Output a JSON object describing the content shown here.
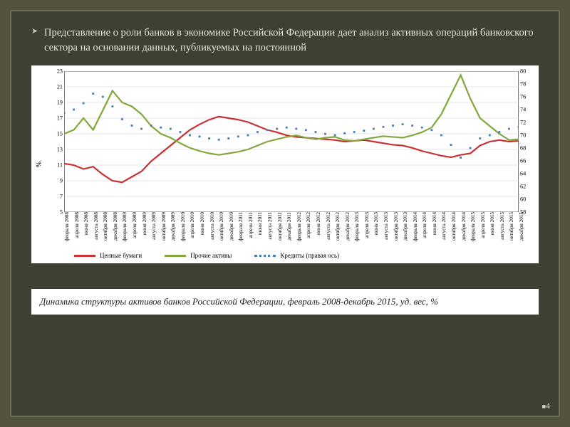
{
  "bullet_text": "Представление о роли банков в экономике Российской Федерации дает анализ активных операций банковского сектора на основании данных, публикуемых на постоянной",
  "caption_text": "Динамика структуры активов банков Российской Федерации, февраль 2008-декабрь 2015, уд. вес, %",
  "page_number": "4",
  "chart": {
    "type": "line",
    "background_color": "#ffffff",
    "slide_background": "#3f3f34",
    "outer_background": "#54533e",
    "ylabel_left": "%",
    "y_left": {
      "min": 5,
      "max": 23,
      "ticks": [
        5,
        7,
        9,
        11,
        13,
        15,
        17,
        19,
        21,
        23
      ]
    },
    "y_right": {
      "min": 58,
      "max": 80,
      "ticks": [
        58,
        60,
        62,
        64,
        66,
        68,
        70,
        72,
        74,
        76,
        78,
        80
      ]
    },
    "x_labels": [
      "февраля 2008",
      "апреля 2008",
      "июня 2008",
      "августа 2008",
      "октября 2008",
      "декабря 2008",
      "февраля 2009",
      "апреля 2009",
      "июня 2009",
      "августа 2009",
      "октября 2009",
      "декабря 2009",
      "февраля 2010",
      "апреля 2010",
      "июня 2010",
      "августа 2010",
      "октября 2010",
      "декабря 2010",
      "февраля 2011",
      "апреля 2011",
      "июня 2011",
      "августа 2011",
      "октября 2011",
      "декабря 2011",
      "февраля 2012",
      "апреля 2012",
      "июня 2012",
      "августа 2012",
      "октября 2012",
      "декабря 2012",
      "февраля 2013",
      "апреля 2013",
      "июня 2013",
      "августа 2013",
      "октября 2013",
      "декабря 2013",
      "февраля 2014",
      "апреля 2014",
      "июня 2014",
      "августа 2014",
      "октября 2014",
      "декабря 2014",
      "февраля 2015",
      "апреля 2015",
      "июня 2015",
      "августа 2015",
      "октября 2015",
      "декабря 2015"
    ],
    "series": [
      {
        "name": "Ценные бумаги",
        "legend_label": "Ценные бумаги",
        "color": "#c83232",
        "axis": "left",
        "style": "solid",
        "line_width": 2.2,
        "values": [
          11.2,
          11.0,
          10.5,
          10.8,
          9.8,
          9.0,
          8.8,
          9.5,
          10.2,
          11.5,
          12.5,
          13.5,
          14.5,
          15.5,
          16.2,
          16.8,
          17.2,
          17.0,
          16.8,
          16.5,
          16.0,
          15.5,
          15.2,
          14.8,
          14.6,
          14.5,
          14.4,
          14.3,
          14.2,
          14.0,
          14.1,
          14.2,
          14.0,
          13.8,
          13.6,
          13.5,
          13.2,
          12.8,
          12.5,
          12.2,
          12.0,
          12.3,
          12.5,
          13.5,
          14.0,
          14.2,
          14.0,
          14.1
        ]
      },
      {
        "name": "Прочие активы",
        "legend_label": "Прочие активы",
        "color": "#82a83c",
        "axis": "left",
        "style": "solid",
        "line_width": 2.2,
        "values": [
          15.0,
          15.5,
          17.0,
          15.5,
          18.0,
          20.5,
          19.0,
          18.5,
          17.5,
          16.0,
          15.0,
          14.5,
          13.8,
          13.2,
          12.8,
          12.5,
          12.3,
          12.5,
          12.7,
          13.0,
          13.5,
          14.0,
          14.3,
          14.6,
          14.8,
          14.5,
          14.3,
          14.5,
          14.6,
          14.2,
          14.1,
          14.3,
          14.5,
          14.7,
          14.6,
          14.5,
          14.8,
          15.2,
          15.8,
          17.5,
          20.0,
          22.5,
          19.5,
          17.0,
          16.0,
          15.0,
          14.2,
          14.3
        ]
      },
      {
        "name": "Кредиты (правая ось)",
        "legend_label": "Кредиты (правая ось)",
        "color": "#4a7db0",
        "axis": "right",
        "style": "dotted",
        "line_width": 2.4,
        "values": [
          73.5,
          74.0,
          75.0,
          76.5,
          76.0,
          74.5,
          72.5,
          71.5,
          71.0,
          71.5,
          71.2,
          71.0,
          70.5,
          70.0,
          69.8,
          69.5,
          69.3,
          69.5,
          69.8,
          70.0,
          70.5,
          70.8,
          71.0,
          71.2,
          71.0,
          70.8,
          70.5,
          70.2,
          70.0,
          70.3,
          70.5,
          70.7,
          71.0,
          71.3,
          71.5,
          71.7,
          71.5,
          71.2,
          70.8,
          70.0,
          68.5,
          66.5,
          68.0,
          69.5,
          70.0,
          70.5,
          71.0,
          71.3
        ]
      }
    ],
    "legend_position": "bottom",
    "grid_color": "#cccccc",
    "axis_color": "#000000",
    "tick_fontsize": 8,
    "label_fontsize": 9
  }
}
